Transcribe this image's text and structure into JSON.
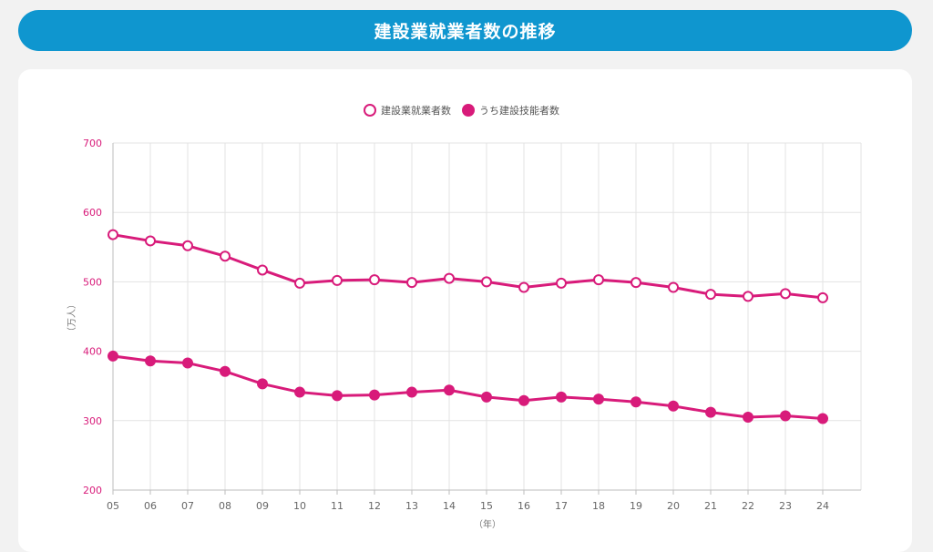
{
  "header": {
    "title": "建設業就業者数の推移"
  },
  "colors": {
    "title_bg": "#0f96cf",
    "series": "#d81b7a",
    "grid": "#e3e3e3"
  },
  "chart_data": {
    "type": "line",
    "title": "建設業就業者数の推移",
    "xlabel": "（年）",
    "ylabel": "（万人）",
    "categories": [
      "05",
      "06",
      "07",
      "08",
      "09",
      "10",
      "11",
      "12",
      "13",
      "14",
      "15",
      "16",
      "17",
      "18",
      "19",
      "20",
      "21",
      "22",
      "23",
      "24"
    ],
    "ylim": [
      200,
      700
    ],
    "yticks": [
      200,
      300,
      400,
      500,
      600,
      700
    ],
    "legend_position": "top-center",
    "grid": true,
    "series": [
      {
        "name": "建設業就業者数",
        "marker": "hollow-circle",
        "values": [
          568,
          559,
          552,
          537,
          517,
          498,
          502,
          503,
          499,
          505,
          500,
          492,
          498,
          503,
          499,
          492,
          482,
          479,
          483,
          477
        ]
      },
      {
        "name": "うち建設技能者数",
        "marker": "filled-circle",
        "values": [
          393,
          386,
          383,
          371,
          353,
          341,
          336,
          337,
          341,
          344,
          334,
          329,
          334,
          331,
          327,
          321,
          312,
          305,
          307,
          303
        ]
      }
    ]
  }
}
